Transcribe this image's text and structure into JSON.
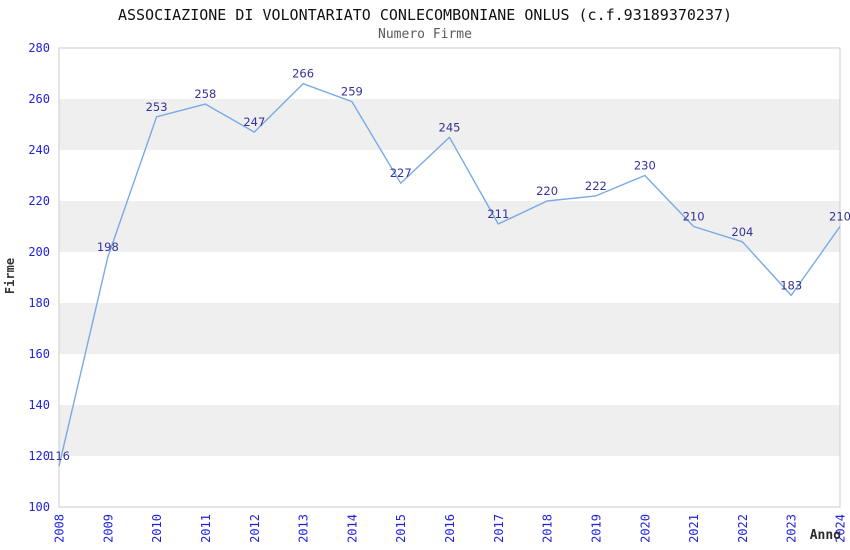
{
  "chart_data": {
    "type": "line",
    "title": "ASSOCIAZIONE DI VOLONTARIATO CONLECOMBONIANE ONLUS (c.f.93189370237)",
    "subtitle": "Numero Firme",
    "xlabel": "Anno",
    "ylabel": "Firme",
    "categories": [
      "2008",
      "2009",
      "2010",
      "2011",
      "2012",
      "2013",
      "2014",
      "2015",
      "2016",
      "2017",
      "2018",
      "2019",
      "2020",
      "2021",
      "2022",
      "2023",
      "2024"
    ],
    "values": [
      116,
      198,
      253,
      258,
      247,
      266,
      259,
      227,
      245,
      211,
      220,
      222,
      230,
      210,
      204,
      183,
      210
    ],
    "ylim": [
      100,
      280
    ],
    "ytick_step": 20,
    "grid": "alternating-horizontal-bands",
    "legend": "none",
    "data_labels_visible": true,
    "colors": {
      "line": "#79aae6",
      "data_label": "#333399",
      "tick_label": "#2222dd",
      "band": "#efefef",
      "plot_border": "#cccccc",
      "title": "#111111",
      "subtitle": "#5a5a5a",
      "axis_title": "#333333",
      "background": "#ffffff"
    }
  }
}
